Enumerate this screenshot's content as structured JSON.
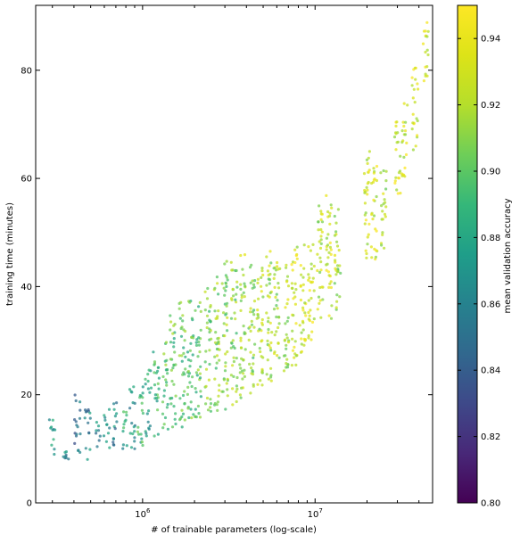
{
  "chart_data": {
    "type": "scatter",
    "title": "",
    "xlabel": "# of trainable parameters (log-scale)",
    "ylabel": "training time (minutes)",
    "x_scale": "log",
    "xlim": [
      240000,
      48000000
    ],
    "ylim": [
      0,
      92
    ],
    "x_ticks": [
      {
        "value": 1000000,
        "base": "10",
        "exp": "6"
      },
      {
        "value": 10000000,
        "base": "10",
        "exp": "7"
      }
    ],
    "y_ticks": [
      {
        "value": 0,
        "label": "0"
      },
      {
        "value": 20,
        "label": "20"
      },
      {
        "value": 40,
        "label": "40"
      },
      {
        "value": 60,
        "label": "60"
      },
      {
        "value": 80,
        "label": "80"
      }
    ],
    "grid": false,
    "colorbar": {
      "label": "mean validation accuracy",
      "colormap": "viridis",
      "range": [
        0.8,
        0.95
      ],
      "ticks": [
        {
          "value": 0.8,
          "label": "0.80"
        },
        {
          "value": 0.82,
          "label": "0.82"
        },
        {
          "value": 0.84,
          "label": "0.84"
        },
        {
          "value": 0.86,
          "label": "0.86"
        },
        {
          "value": 0.88,
          "label": "0.88"
        },
        {
          "value": 0.9,
          "label": "0.90"
        },
        {
          "value": 0.92,
          "label": "0.92"
        },
        {
          "value": 0.94,
          "label": "0.94"
        }
      ]
    },
    "clusters": [
      {
        "x": 300000,
        "y_min": 8,
        "y_max": 16,
        "acc": 0.87
      },
      {
        "x": 360000,
        "y_min": 8,
        "y_max": 10,
        "acc": 0.86
      },
      {
        "x": 420000,
        "y_min": 8,
        "y_max": 20,
        "acc": 0.85
      },
      {
        "x": 480000,
        "y_min": 8,
        "y_max": 18,
        "acc": 0.86
      },
      {
        "x": 550000,
        "y_min": 9,
        "y_max": 15,
        "acc": 0.86
      },
      {
        "x": 620000,
        "y_min": 10,
        "y_max": 18,
        "acc": 0.87
      },
      {
        "x": 700000,
        "y_min": 10,
        "y_max": 19,
        "acc": 0.86
      },
      {
        "x": 780000,
        "y_min": 10,
        "y_max": 18,
        "acc": 0.88
      },
      {
        "x": 870000,
        "y_min": 10,
        "y_max": 22,
        "acc": 0.87
      },
      {
        "x": 970000,
        "y_min": 10,
        "y_max": 22,
        "acc": 0.89
      },
      {
        "x": 1080000,
        "y_min": 12,
        "y_max": 25,
        "acc": 0.88
      },
      {
        "x": 1200000,
        "y_min": 12,
        "y_max": 28,
        "acc": 0.89
      },
      {
        "x": 1350000,
        "y_min": 13,
        "y_max": 30,
        "acc": 0.9
      },
      {
        "x": 1500000,
        "y_min": 13,
        "y_max": 35,
        "acc": 0.9
      },
      {
        "x": 1700000,
        "y_min": 14,
        "y_max": 38,
        "acc": 0.9
      },
      {
        "x": 1900000,
        "y_min": 15,
        "y_max": 38,
        "acc": 0.9
      },
      {
        "x": 2100000,
        "y_min": 15,
        "y_max": 38,
        "acc": 0.9
      },
      {
        "x": 2400000,
        "y_min": 16,
        "y_max": 40,
        "acc": 0.91
      },
      {
        "x": 2700000,
        "y_min": 17,
        "y_max": 42,
        "acc": 0.91
      },
      {
        "x": 3000000,
        "y_min": 17,
        "y_max": 45,
        "acc": 0.91
      },
      {
        "x": 3400000,
        "y_min": 18,
        "y_max": 45,
        "acc": 0.91
      },
      {
        "x": 3800000,
        "y_min": 19,
        "y_max": 47,
        "acc": 0.92
      },
      {
        "x": 4300000,
        "y_min": 20,
        "y_max": 45,
        "acc": 0.91
      },
      {
        "x": 4800000,
        "y_min": 21,
        "y_max": 45,
        "acc": 0.92
      },
      {
        "x": 5400000,
        "y_min": 22,
        "y_max": 47,
        "acc": 0.92
      },
      {
        "x": 6000000,
        "y_min": 23,
        "y_max": 45,
        "acc": 0.92
      },
      {
        "x": 6800000,
        "y_min": 24,
        "y_max": 45,
        "acc": 0.92
      },
      {
        "x": 7600000,
        "y_min": 25,
        "y_max": 48,
        "acc": 0.93
      },
      {
        "x": 8500000,
        "y_min": 27,
        "y_max": 48,
        "acc": 0.93
      },
      {
        "x": 9500000,
        "y_min": 30,
        "y_max": 50,
        "acc": 0.93
      },
      {
        "x": 10700000,
        "y_min": 33,
        "y_max": 55,
        "acc": 0.92
      },
      {
        "x": 12000000,
        "y_min": 34,
        "y_max": 57,
        "acc": 0.93
      },
      {
        "x": 13500000,
        "y_min": 35,
        "y_max": 55,
        "acc": 0.92
      },
      {
        "x": 20000000,
        "y_min": 45,
        "y_max": 65,
        "acc": 0.93
      },
      {
        "x": 22000000,
        "y_min": 45,
        "y_max": 63,
        "acc": 0.93
      },
      {
        "x": 25000000,
        "y_min": 47,
        "y_max": 62,
        "acc": 0.92
      },
      {
        "x": 30000000,
        "y_min": 57,
        "y_max": 72,
        "acc": 0.93
      },
      {
        "x": 33000000,
        "y_min": 60,
        "y_max": 74,
        "acc": 0.93
      },
      {
        "x": 38000000,
        "y_min": 65,
        "y_max": 81,
        "acc": 0.93
      },
      {
        "x": 44000000,
        "y_min": 78,
        "y_max": 90,
        "acc": 0.93
      }
    ]
  }
}
